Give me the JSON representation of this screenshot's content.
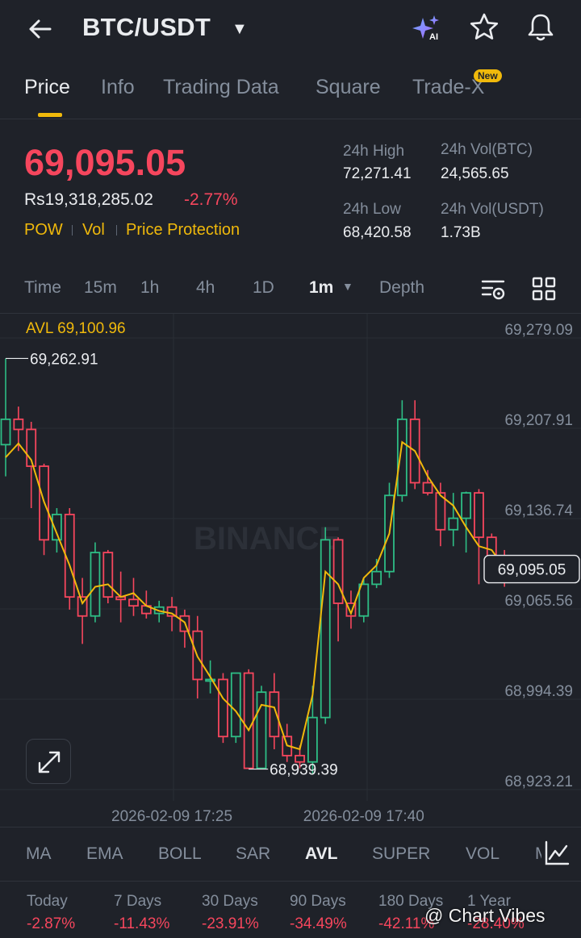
{
  "header": {
    "pair": "BTC/USDT",
    "ai_label": "AI"
  },
  "tabs": [
    {
      "label": "Price"
    },
    {
      "label": "Info"
    },
    {
      "label": "Trading Data"
    },
    {
      "label": "Square"
    },
    {
      "label": "Trade-X"
    }
  ],
  "new_badge": "New",
  "price": {
    "last": "69,095.05",
    "fiat": "Rs19,318,285.02",
    "change": "-2.77%",
    "tags": [
      "POW",
      "Vol",
      "Price Protection"
    ]
  },
  "stats": {
    "high_label": "24h High",
    "high": "72,271.41",
    "low_label": "24h Low",
    "low": "68,420.58",
    "vol_btc_label": "24h Vol(BTC)",
    "vol_btc": "24,565.65",
    "vol_usdt_label": "24h Vol(USDT)",
    "vol_usdt": "1.73B"
  },
  "intervals": [
    "Time",
    "15m",
    "1h",
    "4h",
    "1D",
    "1m",
    "Depth"
  ],
  "chart_data": {
    "type": "candlestick",
    "avl_label": "AVL 69,100.96",
    "y_ticks": [
      "69,279.09",
      "69,207.91",
      "69,136.74",
      "69,065.56",
      "68,994.39",
      "68,923.21"
    ],
    "y_tick_values": [
      69279.09,
      69207.91,
      69136.74,
      69065.56,
      68994.39,
      68923.21
    ],
    "x_ticks": [
      "2026-02-09 17:25",
      "2026-02-09 17:40"
    ],
    "x_tick_index": [
      13,
      28
    ],
    "current_price": "69,095.05",
    "max_label": "69,262.91",
    "min_label": "68,939.39",
    "watermark": "BINANCE",
    "candles": [
      [
        69195,
        69215,
        69262.91,
        69170
      ],
      [
        69215,
        69207,
        69225,
        69190
      ],
      [
        69207,
        69178,
        69213,
        69145
      ],
      [
        69178,
        69120,
        69180,
        69108
      ],
      [
        69120,
        69140,
        69145,
        69110
      ],
      [
        69140,
        69075,
        69145,
        69065
      ],
      [
        69075,
        69060,
        69090,
        69038
      ],
      [
        69060,
        69110,
        69118,
        69055
      ],
      [
        69110,
        69075,
        69112,
        69070
      ],
      [
        69075,
        69073,
        69095,
        69055
      ],
      [
        69073,
        69068,
        69090,
        69060
      ],
      [
        69068,
        69062,
        69080,
        69058
      ],
      [
        69062,
        69067,
        69072,
        69055
      ],
      [
        69067,
        69060,
        69075,
        69048
      ],
      [
        69060,
        69048,
        69065,
        69035
      ],
      [
        69048,
        69010,
        69060,
        68995
      ],
      [
        69010,
        69010,
        69025,
        68999
      ],
      [
        69010,
        68965,
        69015,
        68960
      ],
      [
        68965,
        69015,
        69015,
        68960
      ],
      [
        69015,
        68940,
        69018,
        68939.39
      ],
      [
        68940,
        69000,
        69005,
        68940
      ],
      [
        69000,
        68965,
        69015,
        68955
      ],
      [
        68965,
        68950,
        68975,
        68945
      ],
      [
        68950,
        68945,
        68958,
        68940
      ],
      [
        68945,
        68980,
        69005,
        68935
      ],
      [
        68980,
        69120,
        69130,
        68975
      ],
      [
        69120,
        69070,
        69122,
        69040
      ],
      [
        69070,
        69060,
        69080,
        69050
      ],
      [
        69060,
        69085,
        69090,
        69055
      ],
      [
        69085,
        69095,
        69105,
        69082
      ],
      [
        69095,
        69155,
        69165,
        69090
      ],
      [
        69155,
        69215,
        69230,
        69150
      ],
      [
        69215,
        69165,
        69230,
        69160
      ],
      [
        69165,
        69157,
        69175,
        69155
      ],
      [
        69157,
        69128,
        69165,
        69115
      ],
      [
        69128,
        69137,
        69157,
        69115
      ],
      [
        69137,
        69157,
        69158,
        69110
      ],
      [
        69157,
        69122,
        69160,
        69085
      ],
      [
        69122,
        69105,
        69125,
        69098
      ],
      [
        69105,
        69090,
        69112,
        69083
      ]
    ],
    "avl": [
      69185,
      69196,
      69183,
      69150,
      69125,
      69100,
      69070,
      69083,
      69085,
      69075,
      69078,
      69068,
      69064,
      69062,
      69055,
      69028,
      69012,
      68995,
      68985,
      68970,
      68990,
      68988,
      68958,
      68955,
      68998,
      69095,
      69085,
      69062,
      69090,
      69100,
      69125,
      69197,
      69190,
      69170,
      69155,
      69147,
      69130,
      69115,
      69112,
      69098
    ],
    "bull_color": "#2ebd85",
    "bear_color": "#f6465d",
    "avl_color": "#f0b90b"
  },
  "indicators": [
    "MA",
    "EMA",
    "BOLL",
    "SAR",
    "AVL",
    "SUPER",
    "VOL",
    "M"
  ],
  "performance": [
    {
      "label": "Today",
      "value": "-2.87%"
    },
    {
      "label": "7 Days",
      "value": "-11.43%"
    },
    {
      "label": "30 Days",
      "value": "-23.91%"
    },
    {
      "label": "90 Days",
      "value": "-34.49%"
    },
    {
      "label": "180 Days",
      "value": "-42.11%"
    },
    {
      "label": "1 Year",
      "value": "-28.40%"
    }
  ],
  "watermark_text": "@ Chart Vibes"
}
